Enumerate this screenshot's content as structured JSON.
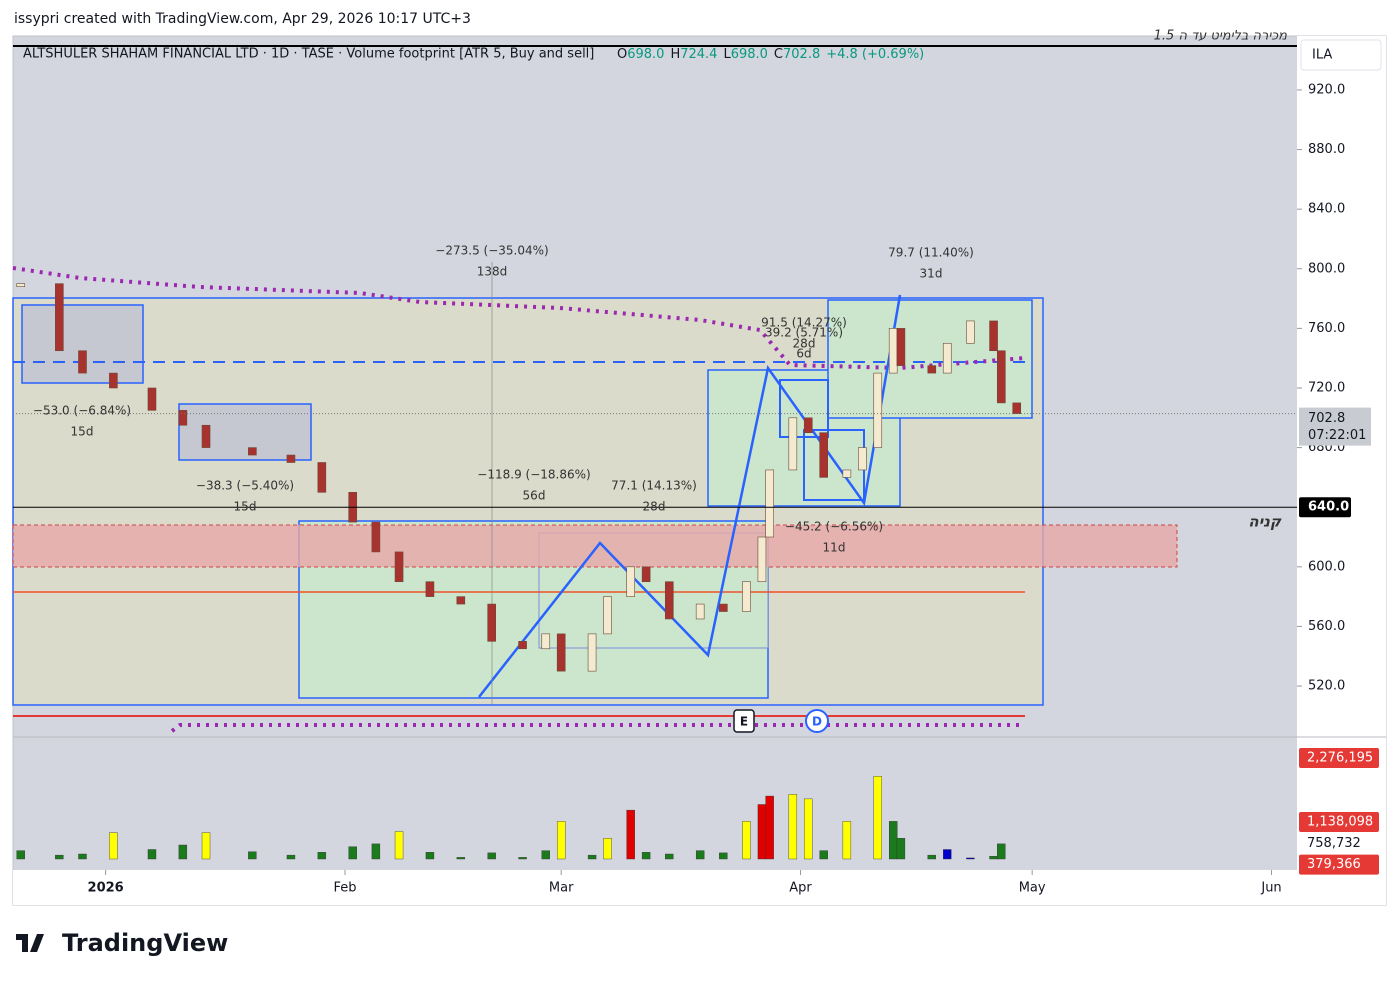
{
  "header": {
    "watermark": "issypri created with TradingView.com, Apr 29, 2026 10:17 UTC+3",
    "logo": "TradingView"
  },
  "chart_data": {
    "type": "candlestick",
    "title": "ALTSHULER SHAHAM FINANCIAL LTD · 1D · TASE · Volume footprint [ATR 5, Buy and sell]",
    "ohlc_legend": {
      "open_label": "O",
      "open": "698.0",
      "high_label": "H",
      "high": "724.4",
      "low_label": "L",
      "low": "698.0",
      "close_label": "C",
      "close": "702.8",
      "change": "+4.8 (+0.69%)"
    },
    "currency": "ILA",
    "top_note": "מכירה בלימיט עד ה 1.5",
    "x": [
      -11,
      -6,
      -3,
      1,
      6,
      10,
      13,
      19,
      24,
      28,
      32,
      35,
      38,
      42,
      46,
      50,
      54,
      57,
      59,
      63,
      65,
      68,
      70,
      73,
      77,
      80,
      83,
      85,
      86,
      89,
      91,
      93,
      96,
      98,
      100,
      102,
      103,
      107,
      109,
      112,
      115,
      116,
      118
    ],
    "series": [
      {
        "values": [
          790,
          745,
          730,
          720,
          705,
          695,
          680,
          675,
          670,
          650,
          630,
          610,
          590,
          580,
          575,
          550,
          545,
          555,
          530,
          555,
          580,
          600,
          590,
          565,
          575,
          570,
          590,
          620,
          665,
          700,
          690,
          660,
          665,
          680,
          730,
          760,
          735,
          730,
          750,
          765,
          745,
          710,
          702.8
        ],
        "up_color": "#f3ead0",
        "down_color": "#a8322d"
      }
    ],
    "xlim": [
      -12,
      154.3
    ],
    "xticks": [
      {
        "value": 0,
        "label": "2026"
      },
      {
        "value": 31,
        "label": "Feb"
      },
      {
        "value": 59,
        "label": "Mar"
      },
      {
        "value": 90,
        "label": "Apr"
      },
      {
        "value": 120,
        "label": "May"
      },
      {
        "value": 151,
        "label": "Jun"
      }
    ],
    "ylim": [
      485.8,
      956.2
    ],
    "yticks": [
      {
        "value": 520,
        "label": "520.0"
      },
      {
        "value": 560,
        "label": "560.0"
      },
      {
        "value": 600,
        "label": "600.0"
      },
      {
        "value": 680,
        "label": "680.0"
      },
      {
        "value": 720,
        "label": "720.0"
      },
      {
        "value": 760,
        "label": "760.0"
      },
      {
        "value": 800,
        "label": "800.0"
      },
      {
        "value": 840,
        "label": "840.0"
      },
      {
        "value": 880,
        "label": "880.0"
      },
      {
        "value": 920,
        "label": "920.0"
      }
    ],
    "grid": false,
    "last_price": {
      "value": 702.8,
      "label": "702.8",
      "countdown": "07:22:01"
    },
    "hline": {
      "value": 640,
      "label": "640.0",
      "note": "קניה"
    },
    "annotations": [
      {
        "text": "−273.5 (−35.04%)",
        "sub": "138d"
      },
      {
        "text": "−53.0 (−6.84%)",
        "sub": "15d"
      },
      {
        "text": "−38.3 (−5.40%)",
        "sub": "15d"
      },
      {
        "text": "−118.9 (−18.86%)",
        "sub": "56d"
      },
      {
        "text": "77.1 (14.13%)",
        "sub": "28d"
      },
      {
        "text": "91.5 (14.27%)",
        "sub": "28d"
      },
      {
        "text": "39.2 (5.71%)",
        "sub": "6d"
      },
      {
        "text": "−45.2 (−6.56%)",
        "sub": "11d"
      },
      {
        "text": "79.7 (11.40%)",
        "sub": "31d"
      }
    ],
    "events": [
      "E",
      "D"
    ],
    "volume": {
      "values": [
        380000,
        300000,
        320000,
        700000,
        400000,
        480000,
        700000,
        360000,
        300000,
        350000,
        450000,
        500000,
        720000,
        350000,
        260000,
        340000,
        260000,
        380000,
        900000,
        300000,
        600000,
        1100000,
        350000,
        320000,
        380000,
        340000,
        900000,
        1200000,
        1350000,
        1380000,
        1300000,
        380000,
        900000,
        200000,
        1700000,
        900000,
        600000,
        300000,
        400000,
        250000,
        280000,
        500000,
        30000
      ],
      "colors": [
        "#1b7a1b",
        "#1b7a1b",
        "#1b7a1b",
        "#ffff00",
        "#1b7a1b",
        "#1b7a1b",
        "#ffff00",
        "#1b7a1b",
        "#1b7a1b",
        "#1b7a1b",
        "#1b7a1b",
        "#1b7a1b",
        "#ffff00",
        "#1b7a1b",
        "#1b7a1b",
        "#1b7a1b",
        "#1b7a1b",
        "#1b7a1b",
        "#ffff00",
        "#1b7a1b",
        "#ffff00",
        "#e00000",
        "#1b7a1b",
        "#1b7a1b",
        "#1b7a1b",
        "#1b7a1b",
        "#ffff00",
        "#e00000",
        "#e00000",
        "#ffff00",
        "#ffff00",
        "#1b7a1b",
        "#ffff00",
        "#0000cc",
        "#ffff00",
        "#1b7a1b",
        "#1b7a1b",
        "#1b7a1b",
        "#0000cc",
        "#0000cc",
        "#1b7a1b",
        "#1b7a1b",
        "#1b7a1b"
      ],
      "ylim": [
        0,
        2400000
      ],
      "yticks": [
        {
          "value": 2276195,
          "label": "2,276,195"
        },
        {
          "value": 1138098,
          "label": "1,138,098"
        },
        {
          "value": 758732,
          "label": "758,732"
        },
        {
          "value": 379366,
          "label": "379,366"
        }
      ],
      "badge_colors": [
        "#e53935",
        "#e53935",
        "#ffffff",
        "#e53935"
      ]
    }
  }
}
